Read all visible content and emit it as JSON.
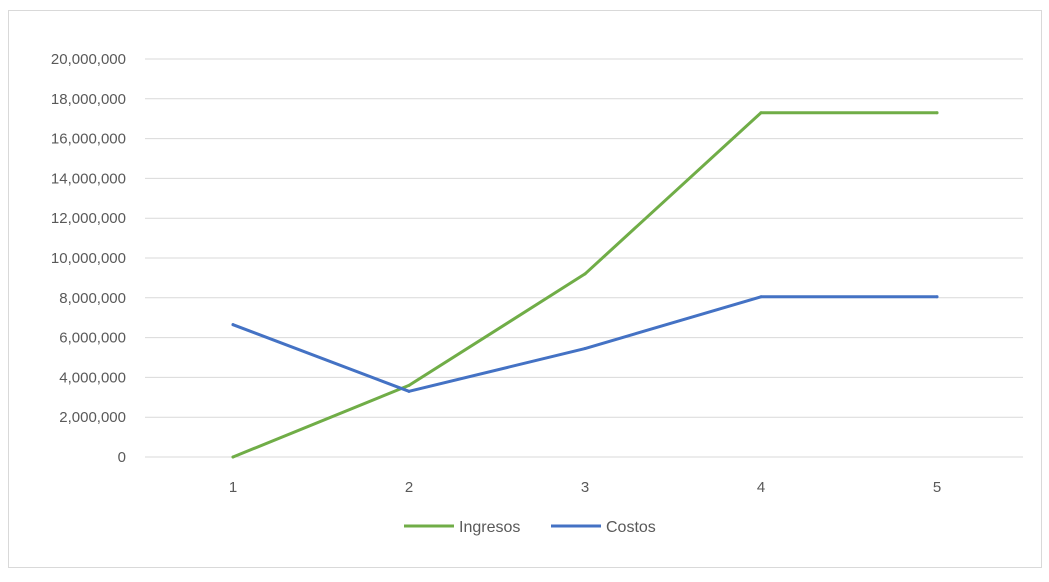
{
  "chart_data": {
    "type": "line",
    "title": "",
    "xlabel": "",
    "ylabel": "",
    "categories": [
      "1",
      "2",
      "3",
      "4",
      "5"
    ],
    "ylim": [
      0,
      20000000
    ],
    "yticks": [
      0,
      2000000,
      4000000,
      6000000,
      8000000,
      10000000,
      12000000,
      14000000,
      16000000,
      18000000,
      20000000
    ],
    "ytick_labels": [
      "0",
      "2,000,000",
      "4,000,000",
      "6,000,000",
      "8,000,000",
      "10,000,000",
      "12,000,000",
      "14,000,000",
      "16,000,000",
      "18,000,000",
      "20,000,000"
    ],
    "grid": true,
    "legend_position": "bottom",
    "series": [
      {
        "name": "Ingresos",
        "color": "#70ad47",
        "values": [
          0,
          3600000,
          9200000,
          17300000,
          17300000
        ]
      },
      {
        "name": "Costos",
        "color": "#4472c4",
        "values": [
          6650000,
          3300000,
          5450000,
          8050000,
          8050000
        ]
      }
    ]
  }
}
